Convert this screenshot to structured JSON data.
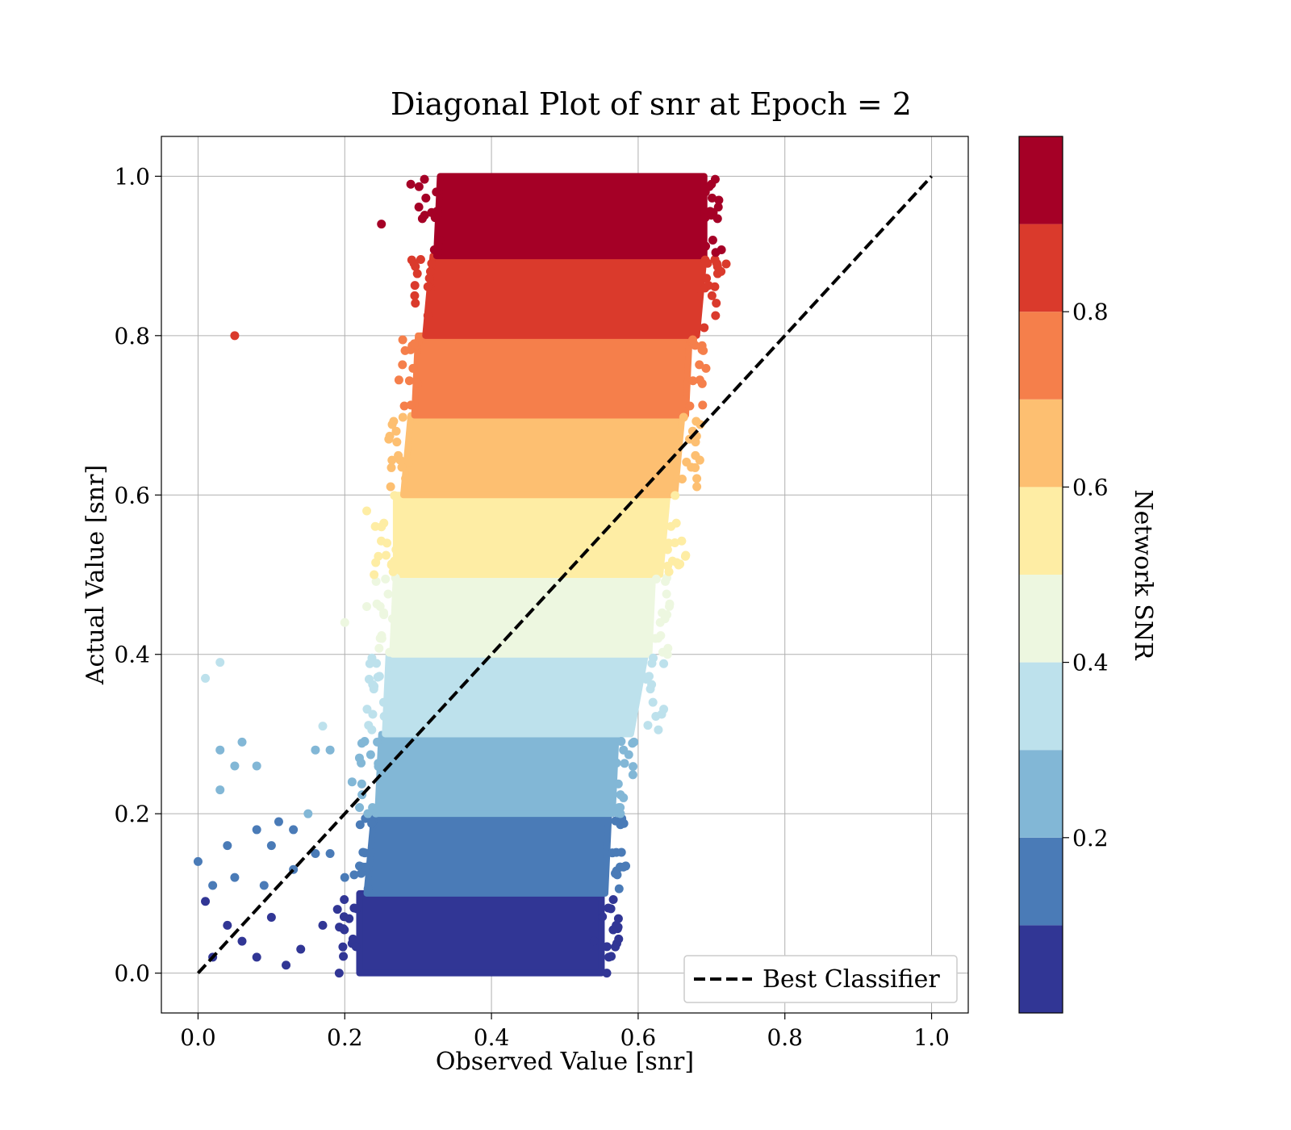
{
  "chart_data": {
    "type": "scatter",
    "title": "Diagonal Plot of snr at Epoch = 2",
    "xlabel": "Observed Value [snr]",
    "ylabel": "Actual Value [snr]",
    "xlim": [
      -0.05,
      1.05
    ],
    "ylim": [
      -0.05,
      1.05
    ],
    "x_ticks": [
      "0.0",
      "0.2",
      "0.4",
      "0.6",
      "0.8",
      "1.0"
    ],
    "y_ticks": [
      "0.0",
      "0.2",
      "0.4",
      "0.6",
      "0.8",
      "1.0"
    ],
    "grid": true,
    "legend": {
      "position": "bottom-right",
      "entries": [
        "Best Classifier"
      ]
    },
    "reference_line": {
      "name": "Best Classifier",
      "style": "dashed",
      "color": "#000000",
      "x": [
        0,
        1
      ],
      "y": [
        0,
        1
      ]
    },
    "colorbar": {
      "label": "Network SNR",
      "range": [
        0.0,
        1.0
      ],
      "ticks": [
        "0.2",
        "0.4",
        "0.6",
        "0.8"
      ],
      "bins": [
        {
          "from": 0.0,
          "to": 0.1,
          "color": "#313695"
        },
        {
          "from": 0.1,
          "to": 0.2,
          "color": "#4a7bb7"
        },
        {
          "from": 0.2,
          "to": 0.3,
          "color": "#82b7d6"
        },
        {
          "from": 0.3,
          "to": 0.4,
          "color": "#bde1ec"
        },
        {
          "from": 0.4,
          "to": 0.5,
          "color": "#edf7e0"
        },
        {
          "from": 0.5,
          "to": 0.6,
          "color": "#feeda4"
        },
        {
          "from": 0.6,
          "to": 0.7,
          "color": "#fdbf71"
        },
        {
          "from": 0.7,
          "to": 0.8,
          "color": "#f57f4b"
        },
        {
          "from": 0.8,
          "to": 0.9,
          "color": "#da3a2c"
        },
        {
          "from": 0.9,
          "to": 1.0,
          "color": "#a50026"
        }
      ]
    },
    "bands": [
      {
        "y_range": [
          0.0,
          0.1
        ],
        "x_range": [
          0.22,
          0.55
        ],
        "color": "#313695"
      },
      {
        "y_range": [
          0.1,
          0.2
        ],
        "x_range": [
          0.24,
          0.56
        ],
        "color": "#4a7bb7"
      },
      {
        "y_range": [
          0.2,
          0.3
        ],
        "x_range": [
          0.25,
          0.57
        ],
        "color": "#82b7d6"
      },
      {
        "y_range": [
          0.3,
          0.4
        ],
        "x_range": [
          0.26,
          0.61
        ],
        "color": "#bde1ec"
      },
      {
        "y_range": [
          0.4,
          0.5
        ],
        "x_range": [
          0.27,
          0.62
        ],
        "color": "#edf7e0"
      },
      {
        "y_range": [
          0.5,
          0.6
        ],
        "x_range": [
          0.27,
          0.64
        ],
        "color": "#feeda4"
      },
      {
        "y_range": [
          0.6,
          0.7
        ],
        "x_range": [
          0.29,
          0.66
        ],
        "color": "#fdbf71"
      },
      {
        "y_range": [
          0.7,
          0.8
        ],
        "x_range": [
          0.3,
          0.67
        ],
        "color": "#f57f4b"
      },
      {
        "y_range": [
          0.8,
          0.9
        ],
        "x_range": [
          0.32,
          0.69
        ],
        "color": "#da3a2c"
      },
      {
        "y_range": [
          0.9,
          1.0
        ],
        "x_range": [
          0.33,
          0.69
        ],
        "color": "#a50026"
      }
    ],
    "outlier_points": [
      {
        "x": 0.05,
        "y": 0.8,
        "color": "#da3a2c"
      },
      {
        "x": 0.25,
        "y": 0.94,
        "color": "#a50026"
      },
      {
        "x": 0.29,
        "y": 0.99,
        "color": "#a50026"
      },
      {
        "x": 0.72,
        "y": 0.89,
        "color": "#da3a2c"
      },
      {
        "x": 0.71,
        "y": 0.97,
        "color": "#a50026"
      },
      {
        "x": 0.7,
        "y": 0.99,
        "color": "#a50026"
      },
      {
        "x": 0.69,
        "y": 0.81,
        "color": "#da3a2c"
      },
      {
        "x": 0.26,
        "y": 0.67,
        "color": "#fdbf71"
      },
      {
        "x": 0.67,
        "y": 0.67,
        "color": "#fdbf71"
      },
      {
        "x": 0.66,
        "y": 0.62,
        "color": "#fdbf71"
      },
      {
        "x": 0.23,
        "y": 0.58,
        "color": "#feeda4"
      },
      {
        "x": 0.25,
        "y": 0.56,
        "color": "#feeda4"
      },
      {
        "x": 0.24,
        "y": 0.5,
        "color": "#feeda4"
      },
      {
        "x": 0.65,
        "y": 0.54,
        "color": "#feeda4"
      },
      {
        "x": 0.2,
        "y": 0.44,
        "color": "#edf7e0"
      },
      {
        "x": 0.23,
        "y": 0.46,
        "color": "#edf7e0"
      },
      {
        "x": 0.64,
        "y": 0.4,
        "color": "#edf7e0"
      },
      {
        "x": 0.63,
        "y": 0.44,
        "color": "#edf7e0"
      },
      {
        "x": 0.01,
        "y": 0.37,
        "color": "#bde1ec"
      },
      {
        "x": 0.03,
        "y": 0.39,
        "color": "#bde1ec"
      },
      {
        "x": 0.17,
        "y": 0.31,
        "color": "#bde1ec"
      },
      {
        "x": 0.24,
        "y": 0.36,
        "color": "#bde1ec"
      },
      {
        "x": 0.03,
        "y": 0.28,
        "color": "#82b7d6"
      },
      {
        "x": 0.05,
        "y": 0.26,
        "color": "#82b7d6"
      },
      {
        "x": 0.06,
        "y": 0.29,
        "color": "#82b7d6"
      },
      {
        "x": 0.08,
        "y": 0.26,
        "color": "#82b7d6"
      },
      {
        "x": 0.03,
        "y": 0.23,
        "color": "#82b7d6"
      },
      {
        "x": 0.16,
        "y": 0.28,
        "color": "#82b7d6"
      },
      {
        "x": 0.18,
        "y": 0.28,
        "color": "#82b7d6"
      },
      {
        "x": 0.15,
        "y": 0.2,
        "color": "#82b7d6"
      },
      {
        "x": 0.21,
        "y": 0.24,
        "color": "#82b7d6"
      },
      {
        "x": 0.22,
        "y": 0.27,
        "color": "#82b7d6"
      },
      {
        "x": 0.58,
        "y": 0.22,
        "color": "#82b7d6"
      },
      {
        "x": 0.58,
        "y": 0.28,
        "color": "#82b7d6"
      },
      {
        "x": 0.11,
        "y": 0.19,
        "color": "#4a7bb7"
      },
      {
        "x": 0.08,
        "y": 0.18,
        "color": "#4a7bb7"
      },
      {
        "x": 0.13,
        "y": 0.18,
        "color": "#4a7bb7"
      },
      {
        "x": 0.04,
        "y": 0.16,
        "color": "#4a7bb7"
      },
      {
        "x": 0.1,
        "y": 0.16,
        "color": "#4a7bb7"
      },
      {
        "x": 0.16,
        "y": 0.15,
        "color": "#4a7bb7"
      },
      {
        "x": 0.18,
        "y": 0.15,
        "color": "#4a7bb7"
      },
      {
        "x": 0.0,
        "y": 0.14,
        "color": "#4a7bb7"
      },
      {
        "x": 0.02,
        "y": 0.11,
        "color": "#4a7bb7"
      },
      {
        "x": 0.05,
        "y": 0.12,
        "color": "#4a7bb7"
      },
      {
        "x": 0.09,
        "y": 0.11,
        "color": "#4a7bb7"
      },
      {
        "x": 0.13,
        "y": 0.13,
        "color": "#4a7bb7"
      },
      {
        "x": 0.2,
        "y": 0.12,
        "color": "#4a7bb7"
      },
      {
        "x": 0.02,
        "y": 0.02,
        "color": "#313695"
      },
      {
        "x": 0.06,
        "y": 0.04,
        "color": "#313695"
      },
      {
        "x": 0.1,
        "y": 0.07,
        "color": "#313695"
      },
      {
        "x": 0.14,
        "y": 0.03,
        "color": "#313695"
      },
      {
        "x": 0.17,
        "y": 0.06,
        "color": "#313695"
      },
      {
        "x": 0.12,
        "y": 0.01,
        "color": "#313695"
      },
      {
        "x": 0.08,
        "y": 0.02,
        "color": "#313695"
      },
      {
        "x": 0.04,
        "y": 0.06,
        "color": "#313695"
      },
      {
        "x": 0.01,
        "y": 0.09,
        "color": "#313695"
      },
      {
        "x": 0.19,
        "y": 0.08,
        "color": "#313695"
      },
      {
        "x": 0.57,
        "y": 0.06,
        "color": "#313695"
      },
      {
        "x": 0.56,
        "y": 0.02,
        "color": "#313695"
      },
      {
        "x": 0.54,
        "y": 0.04,
        "color": "#313695"
      }
    ]
  }
}
